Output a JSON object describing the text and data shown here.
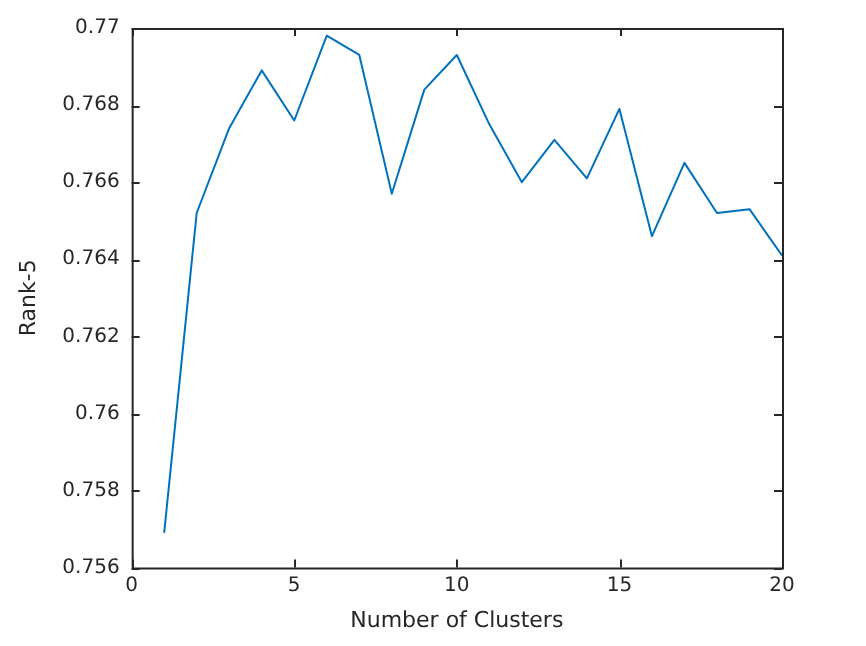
{
  "chart_data": {
    "type": "line",
    "xlabel": "Number of Clusters",
    "ylabel": "Rank-5",
    "x": [
      1,
      2,
      3,
      4,
      5,
      6,
      7,
      8,
      9,
      10,
      11,
      12,
      13,
      14,
      15,
      16,
      17,
      18,
      19,
      20
    ],
    "series": [
      {
        "color": "#0072bd",
        "values": [
          0.7569,
          0.7652,
          0.7674,
          0.7689,
          0.7676,
          0.7698,
          0.7693,
          0.7657,
          0.7684,
          0.7693,
          0.7675,
          0.766,
          0.7671,
          0.7661,
          0.7679,
          0.7646,
          0.7665,
          0.7652,
          0.7653,
          0.7641
        ]
      }
    ],
    "xlim": [
      0,
      20
    ],
    "xticks": [
      0,
      5,
      10,
      15,
      20
    ],
    "ylim": [
      0.756,
      0.77
    ],
    "yticks": [
      0.756,
      0.758,
      0.76,
      0.762,
      0.764,
      0.766,
      0.768,
      0.77
    ],
    "grid": false,
    "legend": false,
    "marker": "none",
    "line_style": "solid"
  }
}
